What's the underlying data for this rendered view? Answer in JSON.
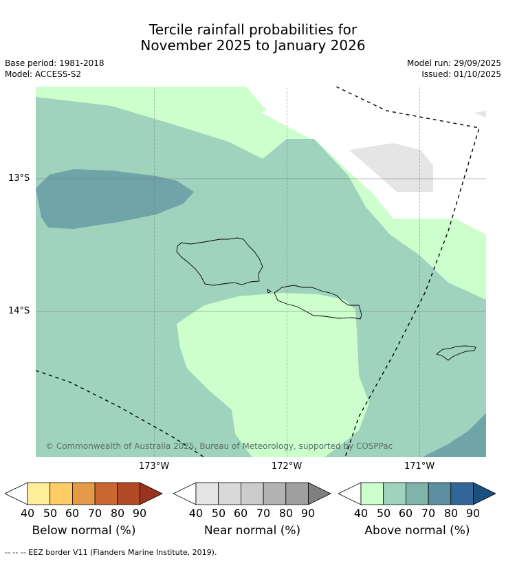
{
  "title": {
    "line1": "Tercile rainfall probabilities for",
    "line2": "November 2025 to January 2026"
  },
  "meta": {
    "base_period": "Base period: 1981-2018",
    "model": "Model: ACCESS-S2",
    "model_run": "Model run: 29/09/2025",
    "issued": "Issued: 01/10/2025"
  },
  "map": {
    "lat_labels": [
      "13°S",
      "14°S"
    ],
    "lon_labels": [
      "173°W",
      "172°W",
      "171°W"
    ],
    "copyright": "© Commonwealth of Australia 2025, Bureau of Meteorology, supported by COSPPac",
    "colors": {
      "above_40": "#ccffcc",
      "above_50": "#9fd3bd",
      "above_60": "#6fa5a9",
      "near_40": "#e5e5e5",
      "eez_line": "#000000"
    }
  },
  "colorbars": [
    {
      "title": "Below normal (%)",
      "ticks": [
        "40",
        "50",
        "60",
        "70",
        "80",
        "90"
      ],
      "colors": [
        "#ffffff",
        "#ffee99",
        "#ffcc66",
        "#e59a48",
        "#cc6633",
        "#b34a26",
        "#993320"
      ]
    },
    {
      "title": "Near normal (%)",
      "ticks": [
        "40",
        "50",
        "60",
        "70",
        "80",
        "90"
      ],
      "colors": [
        "#ffffff",
        "#e5e5e5",
        "#d9d9d9",
        "#cccccc",
        "#b3b3b3",
        "#9f9f9f",
        "#808080"
      ]
    },
    {
      "title": "Above normal (%)",
      "ticks": [
        "40",
        "50",
        "60",
        "70",
        "80",
        "90"
      ],
      "colors": [
        "#ffffff",
        "#ccffcc",
        "#9fd3bd",
        "#80b3aa",
        "#5b8fa0",
        "#336699",
        "#1a4f80"
      ]
    }
  ],
  "footer": "--  --  -- EEZ border V11 (Flanders Marine Institute, 2019)."
}
